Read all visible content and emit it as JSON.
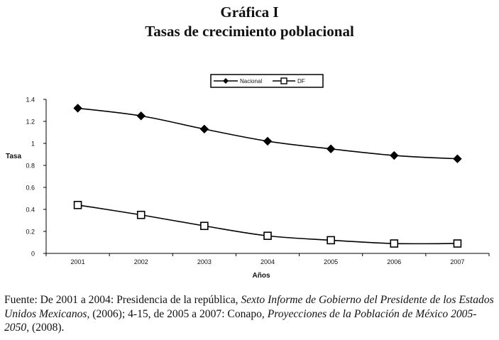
{
  "header": {
    "title": "Gráfica I",
    "subtitle": "Tasas de crecimiento poblacional"
  },
  "chart_data": {
    "type": "line",
    "x": [
      "2001",
      "2002",
      "2003",
      "2004",
      "2005",
      "2006",
      "2007"
    ],
    "series": [
      {
        "name": "Nacional",
        "values": [
          1.32,
          1.25,
          1.13,
          1.02,
          0.95,
          0.89,
          0.86
        ],
        "marker": "filled-diamond",
        "color": "#000000"
      },
      {
        "name": "DF",
        "values": [
          0.44,
          0.35,
          0.25,
          0.16,
          0.12,
          0.09,
          0.09
        ],
        "marker": "open-square",
        "color": "#000000"
      }
    ],
    "xlabel": "Años",
    "ylabel": "Tasa",
    "ylim": [
      0,
      1.4
    ],
    "yticks": [
      "0",
      "0.2",
      "0.4",
      "0.6",
      "0.8",
      "1",
      "1.2",
      "1.4"
    ],
    "grid": false,
    "legend_position": "top-center"
  },
  "source": {
    "prefix": "Fuente: De 2001 a 2004: Presidencia de la república, ",
    "italic1": "Sexto Informe de Gobierno del Presidente de los Estados Unidos Mexicanos",
    "middle": ", (2006); 4-15, de 2005 a 2007: Conapo, ",
    "italic2": "Proyecciones de la Población de México 2005-2050",
    "suffix": ", (2008)."
  }
}
